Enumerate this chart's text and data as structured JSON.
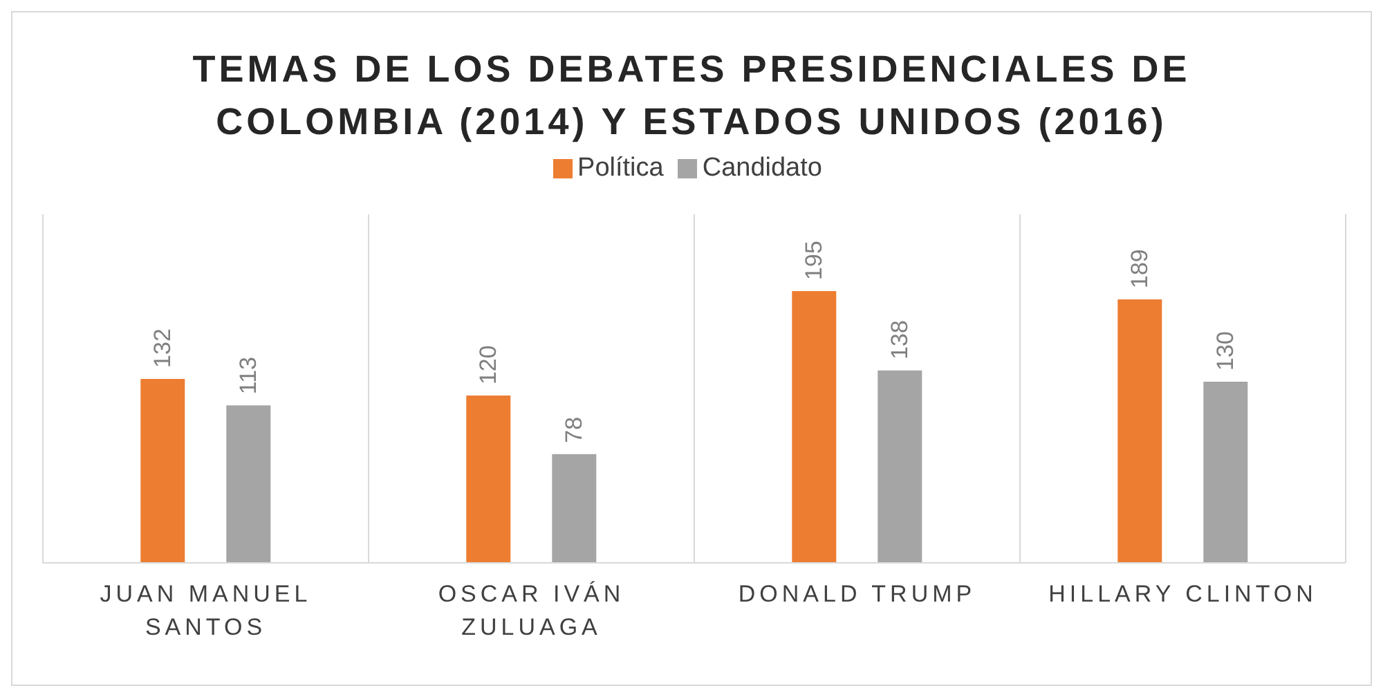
{
  "chart_data": {
    "type": "bar",
    "title": "TEMAS DE LOS DEBATES PRESIDENCIALES DE COLOMBIA (2014) Y ESTADOS UNIDOS (2016)",
    "categories": [
      "JUAN MANUEL SANTOS",
      "OSCAR IVÁN ZULUAGA",
      "DONALD TRUMP",
      "HILLARY CLINTON"
    ],
    "series": [
      {
        "name": "Política",
        "color": "#ed7d31",
        "values": [
          132,
          120,
          195,
          189
        ]
      },
      {
        "name": "Candidato",
        "color": "#a5a5a5",
        "values": [
          113,
          78,
          138,
          130
        ]
      }
    ],
    "ylim": [
      0,
      250
    ],
    "data_labels": true,
    "grid": "x",
    "legend": "top"
  }
}
